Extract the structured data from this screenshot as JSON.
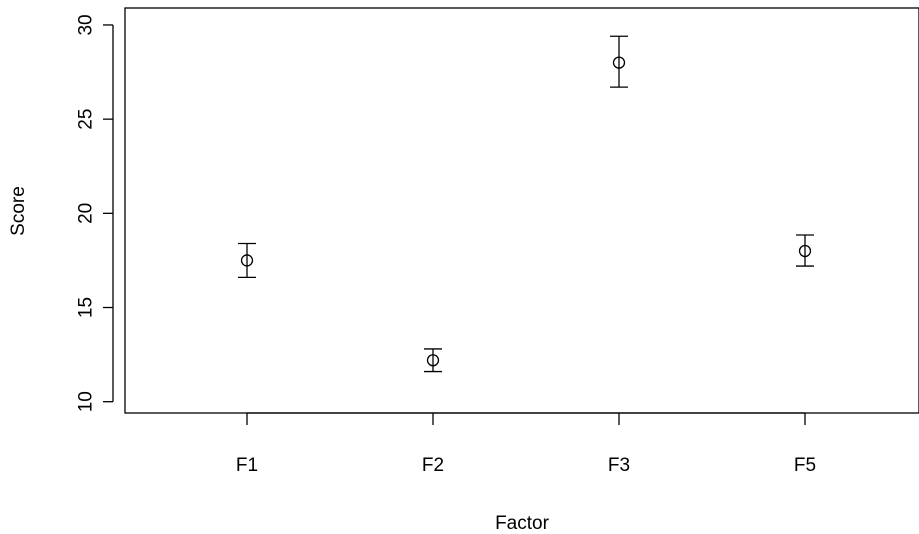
{
  "chart_data": {
    "type": "scatter",
    "title": "",
    "xlabel": "Factor",
    "ylabel": "Score",
    "categories": [
      "F1",
      "F2",
      "F3",
      "F5"
    ],
    "values": [
      17.5,
      12.2,
      28.0,
      18.0
    ],
    "error_bars": {
      "lower": [
        16.6,
        11.6,
        26.7,
        17.2
      ],
      "upper": [
        18.4,
        12.8,
        29.4,
        18.85
      ]
    },
    "ylim": [
      9.4,
      30.9
    ],
    "yticks": [
      10,
      15,
      20,
      25,
      30
    ],
    "ytick_labels": [
      "10",
      "15",
      "20",
      "25",
      "30"
    ],
    "marker": "open-circle",
    "grid": false,
    "legend": "none",
    "colors": {
      "marks": "#000000",
      "background": "#ffffff"
    }
  }
}
